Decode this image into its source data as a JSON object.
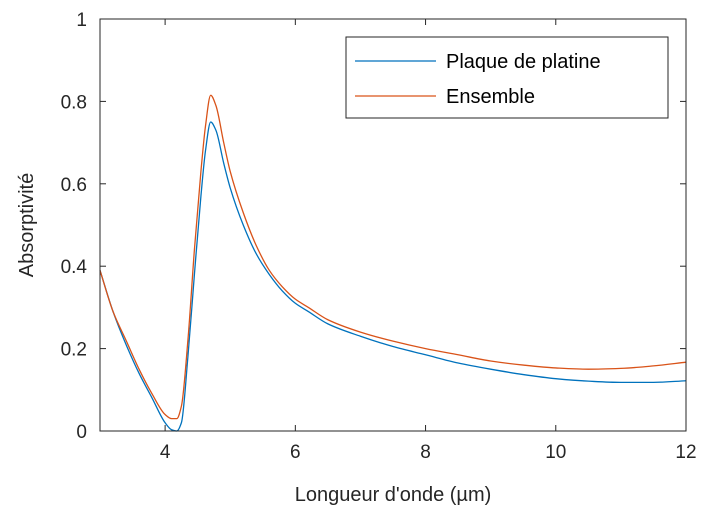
{
  "chart_data": {
    "type": "line",
    "xlabel": "Longueur d'onde (µm)",
    "ylabel": "Absorptivité",
    "xlim": [
      3,
      12
    ],
    "ylim": [
      0,
      1
    ],
    "xticks": [
      4,
      6,
      8,
      10,
      12
    ],
    "xtick_labels": [
      "4",
      "6",
      "8",
      "10",
      "12"
    ],
    "yticks": [
      0,
      0.2,
      0.4,
      0.6,
      0.8,
      1
    ],
    "ytick_labels": [
      "0",
      "0.2",
      "0.4",
      "0.6",
      "0.8",
      "1"
    ],
    "grid": false,
    "legend_position": "top-right",
    "series": [
      {
        "name": "Plaque de platine",
        "color": "#0072BD",
        "x": [
          3.0,
          3.2,
          3.4,
          3.6,
          3.8,
          4.0,
          4.1,
          4.18,
          4.25,
          4.35,
          4.45,
          4.55,
          4.62,
          4.7,
          4.78,
          4.9,
          5.0,
          5.2,
          5.4,
          5.6,
          5.8,
          6.0,
          6.2,
          6.5,
          7.0,
          7.5,
          8.0,
          8.5,
          9.0,
          9.5,
          10.0,
          10.5,
          11.0,
          11.5,
          12.0
        ],
        "y": [
          0.39,
          0.29,
          0.21,
          0.14,
          0.08,
          0.02,
          0.003,
          0.0,
          0.02,
          0.18,
          0.38,
          0.57,
          0.68,
          0.75,
          0.73,
          0.65,
          0.59,
          0.5,
          0.43,
          0.38,
          0.34,
          0.31,
          0.29,
          0.26,
          0.23,
          0.205,
          0.185,
          0.165,
          0.15,
          0.137,
          0.127,
          0.121,
          0.118,
          0.118,
          0.122
        ]
      },
      {
        "name": "Ensemble",
        "color": "#D95319",
        "x": [
          3.0,
          3.2,
          3.4,
          3.6,
          3.8,
          4.0,
          4.1,
          4.18,
          4.25,
          4.35,
          4.45,
          4.55,
          4.62,
          4.7,
          4.78,
          4.9,
          5.0,
          5.2,
          5.4,
          5.6,
          5.8,
          6.0,
          6.2,
          6.5,
          7.0,
          7.5,
          8.0,
          8.5,
          9.0,
          9.5,
          10.0,
          10.5,
          11.0,
          11.5,
          12.0
        ],
        "y": [
          0.39,
          0.29,
          0.22,
          0.15,
          0.09,
          0.04,
          0.03,
          0.03,
          0.06,
          0.22,
          0.44,
          0.63,
          0.74,
          0.815,
          0.79,
          0.7,
          0.63,
          0.53,
          0.45,
          0.39,
          0.35,
          0.32,
          0.3,
          0.27,
          0.24,
          0.218,
          0.2,
          0.185,
          0.17,
          0.16,
          0.153,
          0.15,
          0.152,
          0.158,
          0.167
        ]
      }
    ]
  }
}
